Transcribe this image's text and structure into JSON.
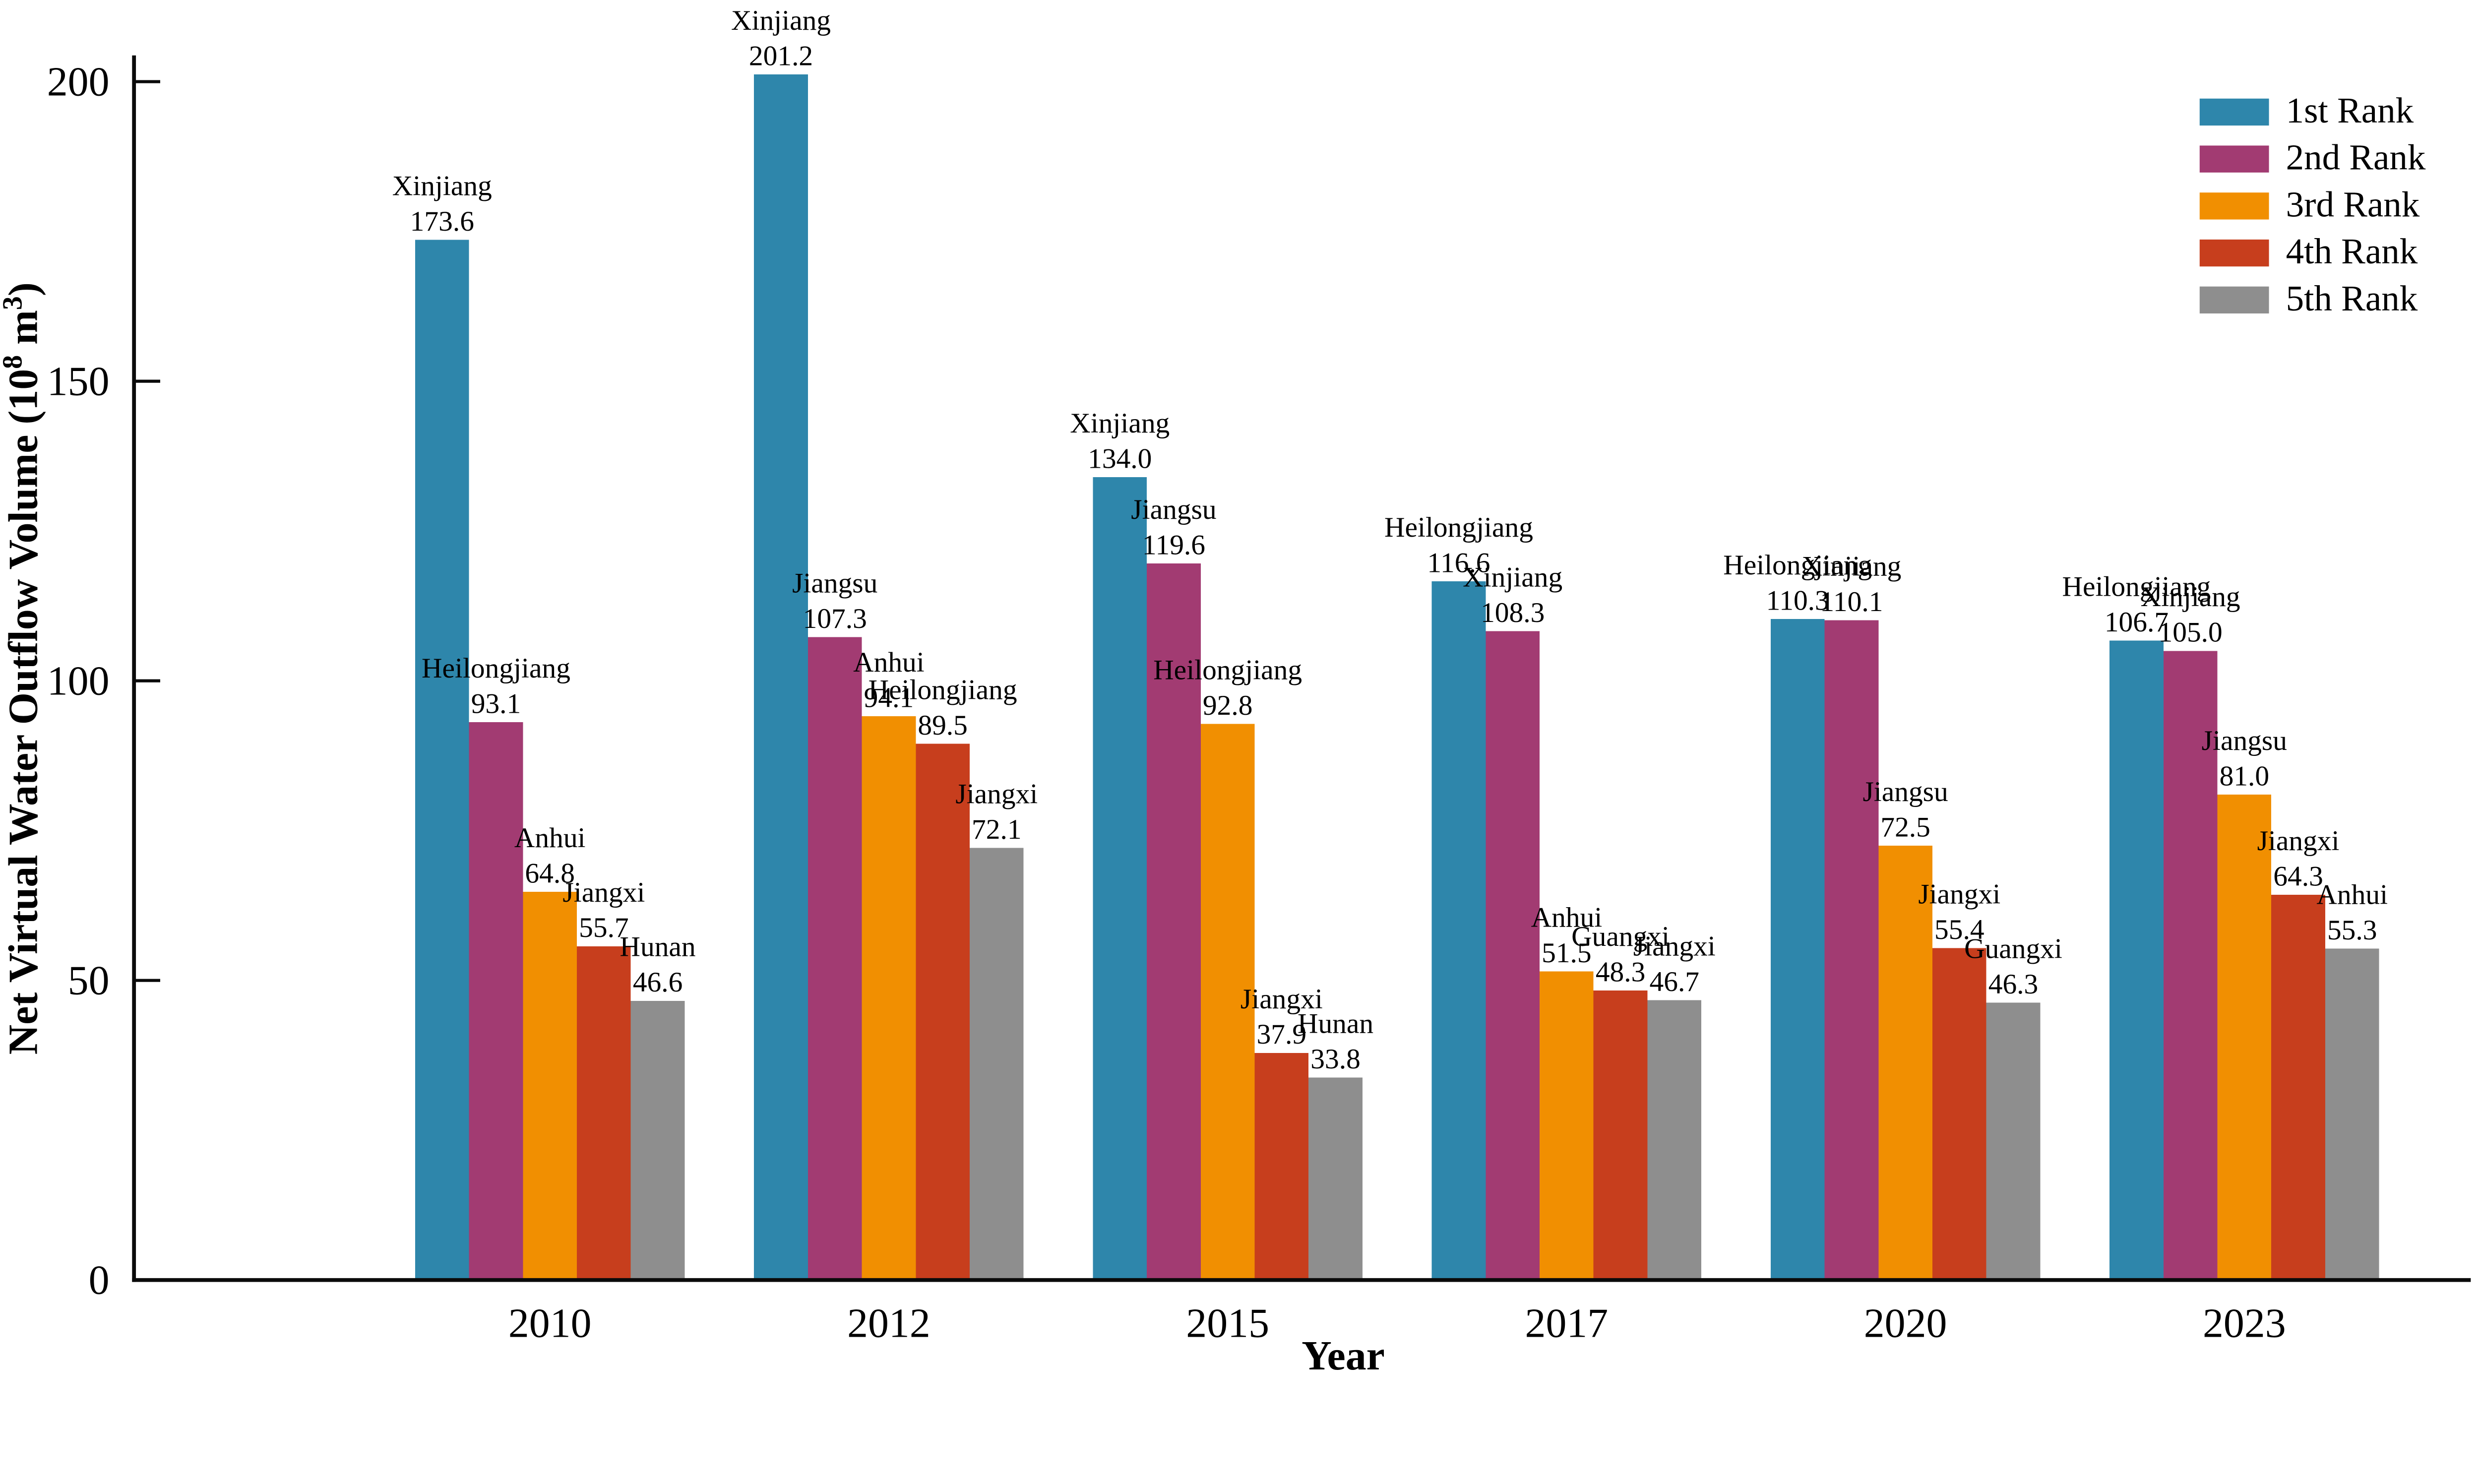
{
  "figure": {
    "background": "#ffffff",
    "axis_color": "#0a0a0a",
    "text_color": "#000000"
  },
  "chart_data": {
    "type": "bar",
    "title": "",
    "xlabel": "Year",
    "ylabel": {
      "prefix": "Net Virtual Water Outflow Volume (10",
      "sup1": "8",
      "mid": " m",
      "sup2": "3",
      "suffix": ")"
    },
    "ylabel_plain": "Net Virtual Water Outflow Volume (10^8 m^3)",
    "ylim": [
      0,
      210
    ],
    "yticks": [
      0,
      50,
      100,
      150,
      200
    ],
    "grid": "off",
    "legend_position": "upper right",
    "categories": [
      "2010",
      "2012",
      "2015",
      "2017",
      "2020",
      "2023"
    ],
    "series": [
      {
        "rank": "1st Rank",
        "color": "#2e86ab",
        "bars": [
          {
            "province": "Xinjiang",
            "value": 173.6
          },
          {
            "province": "Xinjiang",
            "value": 201.2
          },
          {
            "province": "Xinjiang",
            "value": 134.0
          },
          {
            "province": "Heilongjiang",
            "value": 116.6
          },
          {
            "province": "Heilongjiang",
            "value": 110.3
          },
          {
            "province": "Heilongjiang",
            "value": 106.7
          }
        ]
      },
      {
        "rank": "2nd Rank",
        "color": "#a23b72",
        "bars": [
          {
            "province": "Heilongjiang",
            "value": 93.1
          },
          {
            "province": "Jiangsu",
            "value": 107.3
          },
          {
            "province": "Jiangsu",
            "value": 119.6
          },
          {
            "province": "Xinjiang",
            "value": 108.3
          },
          {
            "province": "Xinjiang",
            "value": 110.1
          },
          {
            "province": "Xinjiang",
            "value": 105.0
          }
        ]
      },
      {
        "rank": "3rd Rank",
        "color": "#f18f01",
        "bars": [
          {
            "province": "Anhui",
            "value": 64.8
          },
          {
            "province": "Anhui",
            "value": 94.1
          },
          {
            "province": "Heilongjiang",
            "value": 92.8
          },
          {
            "province": "Anhui",
            "value": 51.5
          },
          {
            "province": "Jiangsu",
            "value": 72.5
          },
          {
            "province": "Jiangsu",
            "value": 81.0
          }
        ]
      },
      {
        "rank": "4th Rank",
        "color": "#c73e1d",
        "bars": [
          {
            "province": "Jiangxi",
            "value": 55.7
          },
          {
            "province": "Heilongjiang",
            "value": 89.5
          },
          {
            "province": "Jiangxi",
            "value": 37.9
          },
          {
            "province": "Guangxi",
            "value": 48.3
          },
          {
            "province": "Jiangxi",
            "value": 55.4
          },
          {
            "province": "Jiangxi",
            "value": 64.3
          }
        ]
      },
      {
        "rank": "5th Rank",
        "color": "#8e8e8e",
        "bars": [
          {
            "province": "Hunan",
            "value": 46.6
          },
          {
            "province": "Jiangxi",
            "value": 72.1
          },
          {
            "province": "Hunan",
            "value": 33.8
          },
          {
            "province": "Jiangxi",
            "value": 46.7
          },
          {
            "province": "Guangxi",
            "value": 46.3
          },
          {
            "province": "Anhui",
            "value": 55.3
          }
        ]
      }
    ]
  }
}
